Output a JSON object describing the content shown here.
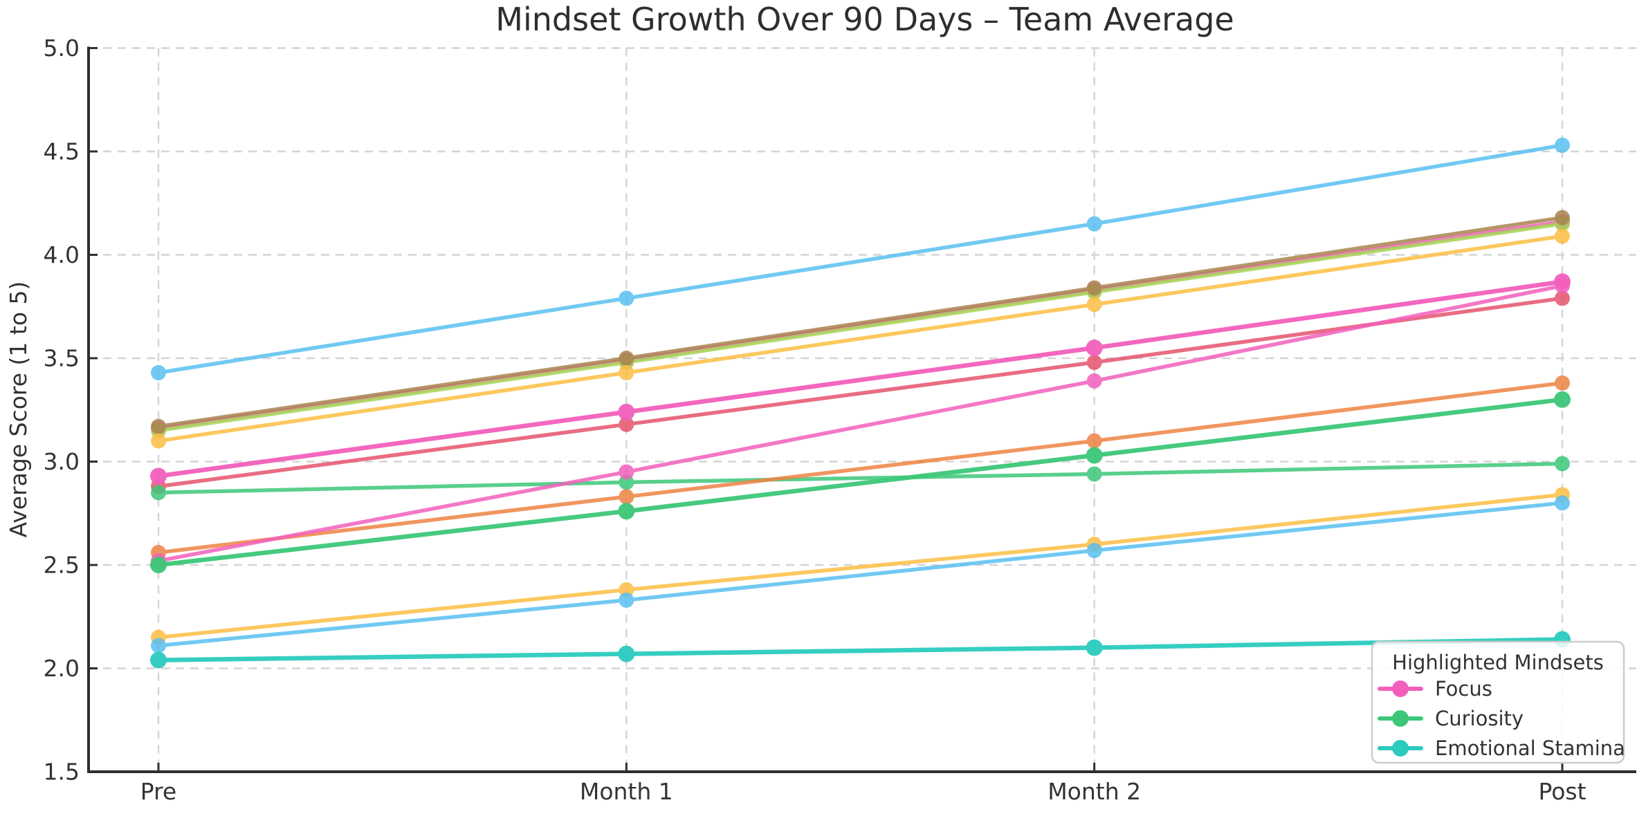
{
  "page": {
    "background": "#ffffff"
  },
  "chart_data": {
    "type": "line",
    "title": "Mindset Growth Over 90 Days – Team Average",
    "xlabel": "",
    "ylabel": "Average Score (1 to 5)",
    "categories": [
      "Pre",
      "Month 1",
      "Month 2",
      "Post"
    ],
    "ylim": [
      1.5,
      5.0
    ],
    "yticks": [
      "1.5",
      "2.0",
      "2.5",
      "3.0",
      "3.5",
      "4.0",
      "4.5",
      "5.0"
    ],
    "grid": {
      "horizontal": true,
      "vertical": true,
      "style": "dashed",
      "color": "#d4d4d4"
    },
    "axis_color": "#2e2e2e",
    "text_color": "#333333",
    "marker": "circle",
    "legend": {
      "title": "Highlighted Mindsets",
      "position": "lower-right",
      "entries": [
        {
          "label": "Focus",
          "color": "#F25FBC"
        },
        {
          "label": "Curiosity",
          "color": "#3CC778"
        },
        {
          "label": "Emotional Stamina",
          "color": "#2BCBBE"
        }
      ]
    },
    "series": [
      {
        "id": "unlabeled-sky-blue-upper",
        "legend_label": "",
        "color": "#58BFF1",
        "highlighted": false,
        "values": [
          3.43,
          3.79,
          4.15,
          4.53
        ]
      },
      {
        "id": "unlabeled-pink-upper",
        "legend_label": "",
        "color": "#F25FBC",
        "highlighted": false,
        "values": [
          3.16,
          3.49,
          3.83,
          4.16
        ]
      },
      {
        "id": "unlabeled-yellow-green",
        "legend_label": "",
        "color": "#A4D352",
        "highlighted": false,
        "values": [
          3.15,
          3.48,
          3.82,
          4.15
        ]
      },
      {
        "id": "unlabeled-brown",
        "legend_label": "",
        "color": "#A9834F",
        "highlighted": false,
        "values": [
          3.17,
          3.5,
          3.84,
          4.18
        ]
      },
      {
        "id": "unlabeled-amber-upper",
        "legend_label": "",
        "color": "#FCBE43",
        "highlighted": false,
        "values": [
          3.1,
          3.43,
          3.76,
          4.09
        ]
      },
      {
        "id": "unlabeled-red",
        "legend_label": "",
        "color": "#E5536C",
        "highlighted": false,
        "values": [
          2.88,
          3.18,
          3.48,
          3.79
        ]
      },
      {
        "id": "unlabeled-green-flat",
        "legend_label": "",
        "color": "#3CC778",
        "highlighted": false,
        "values": [
          2.85,
          2.9,
          2.94,
          2.99
        ]
      },
      {
        "id": "unlabeled-orange",
        "legend_label": "",
        "color": "#EE8243",
        "highlighted": false,
        "values": [
          2.56,
          2.83,
          3.1,
          3.38
        ]
      },
      {
        "id": "unlabeled-pink-riser",
        "legend_label": "",
        "color": "#F25FBC",
        "highlighted": false,
        "values": [
          2.52,
          2.95,
          3.39,
          3.85
        ]
      },
      {
        "id": "unlabeled-amber-lower",
        "legend_label": "",
        "color": "#FCBE43",
        "highlighted": false,
        "values": [
          2.15,
          2.38,
          2.6,
          2.84
        ]
      },
      {
        "id": "unlabeled-sky-blue-lower",
        "legend_label": "",
        "color": "#58BFF1",
        "highlighted": false,
        "values": [
          2.11,
          2.33,
          2.57,
          2.8
        ]
      },
      {
        "id": "focus",
        "legend_label": "Focus",
        "color": "#F25FBC",
        "highlighted": true,
        "values": [
          2.93,
          3.24,
          3.55,
          3.87
        ]
      },
      {
        "id": "curiosity",
        "legend_label": "Curiosity",
        "color": "#3CC778",
        "highlighted": true,
        "values": [
          2.5,
          2.76,
          3.03,
          3.3
        ]
      },
      {
        "id": "emotional-stamina",
        "legend_label": "Emotional Stamina",
        "color": "#2BCBBE",
        "highlighted": true,
        "values": [
          2.04,
          2.07,
          2.1,
          2.14
        ]
      }
    ]
  }
}
